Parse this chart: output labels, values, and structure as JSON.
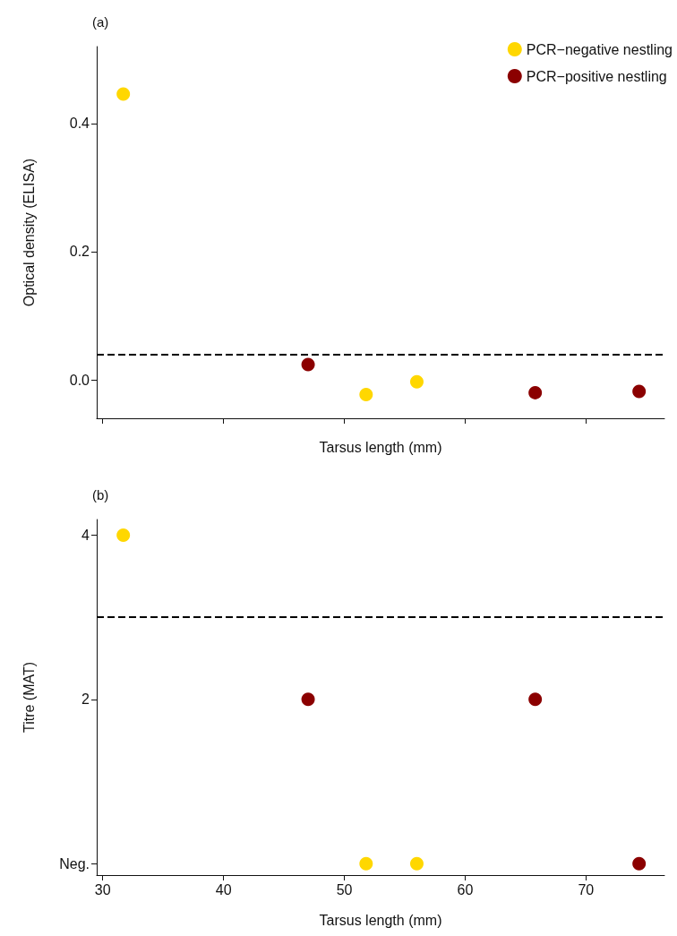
{
  "chart_data": [
    {
      "type": "scatter",
      "title": "(a)",
      "xlabel": "Tarsus length (mm)",
      "ylabel": "Optical density (ELISA)",
      "xlim": [
        29.5,
        76.5
      ],
      "xticks": [
        30,
        40,
        50,
        60,
        70
      ],
      "ylim": [
        -0.06,
        0.52
      ],
      "yticks": [
        {
          "value": 0,
          "label": "0.0"
        },
        0.2,
        0.4
      ],
      "tick_labels": "y",
      "legend": "top right",
      "marker": "circle",
      "grid": false,
      "series": [
        {
          "name": "PCR−negative nestling",
          "color": "#ffd700",
          "x": [
            31.7,
            51.8,
            56.0
          ],
          "values": [
            0.446,
            -0.023,
            -0.003
          ]
        },
        {
          "name": "PCR−positive nestling",
          "color": "#8b0000",
          "x": [
            47.0,
            65.8,
            74.4
          ],
          "values": [
            0.024,
            -0.02,
            -0.018
          ]
        }
      ],
      "ref_lines": [
        {
          "axis": "y",
          "value": 0.04,
          "color": "#000000",
          "line_style": "dashed"
        }
      ]
    },
    {
      "type": "scatter",
      "title": "(b)",
      "xlabel": "Tarsus length (mm)",
      "ylabel": "Titre (MAT)",
      "xlim": [
        29.5,
        76.5
      ],
      "xticks": [
        30,
        40,
        50,
        60,
        70
      ],
      "ylim": [
        -0.14,
        4.19
      ],
      "yticks": [
        {
          "value": 0,
          "label": "Neg."
        },
        2,
        4
      ],
      "marker": "circle",
      "grid": false,
      "series": [
        {
          "color": "#ffd700",
          "x": [
            31.7,
            51.8,
            56.0
          ],
          "values": [
            4,
            0,
            0
          ]
        },
        {
          "color": "#8b0000",
          "x": [
            47.0,
            65.8,
            74.4
          ],
          "values": [
            2,
            2,
            0
          ]
        }
      ],
      "ref_lines": [
        {
          "axis": "y",
          "value": 3,
          "color": "#000000",
          "line_style": "dashed"
        }
      ]
    }
  ]
}
